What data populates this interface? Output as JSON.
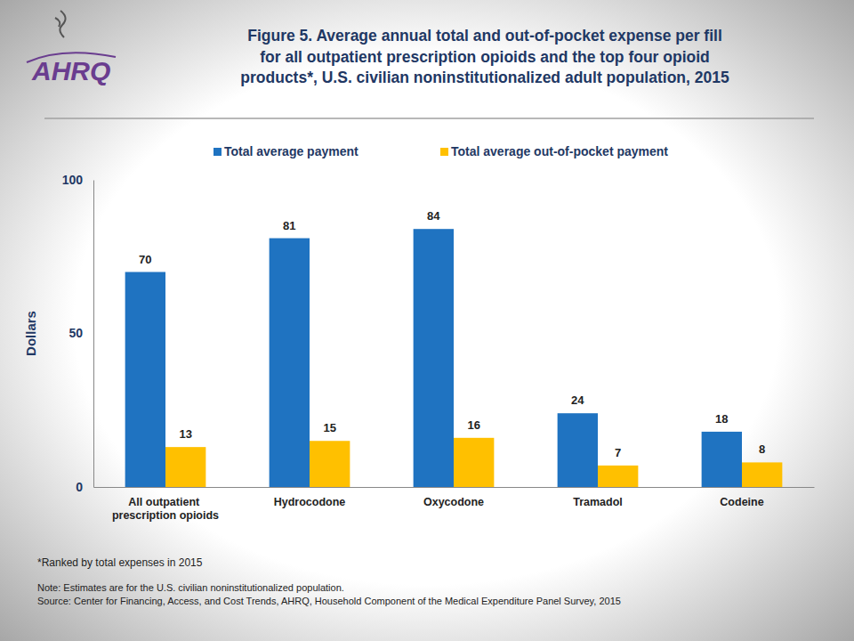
{
  "chart_data": {
    "type": "bar",
    "title": [
      "Figure 5. Average annual total and out-of-pocket expense per fill",
      "for all outpatient prescription opioids and the top four opioid",
      "products*, U.S. civilian noninstitutionalized adult population, 2015"
    ],
    "logo": "AHRQ",
    "categories": [
      "All outpatient prescription opioids",
      "Hydrocodone",
      "Oxycodone",
      "Tramadol",
      "Codeine"
    ],
    "series": [
      {
        "name": "Total average payment",
        "color": "#1f73c1",
        "values": [
          70,
          81,
          84,
          24,
          18
        ]
      },
      {
        "name": "Total average out-of-pocket payment",
        "color": "#ffc000",
        "values": [
          13,
          15,
          16,
          7,
          8
        ]
      }
    ],
    "ylim": [
      0,
      100
    ],
    "yticks": [
      0,
      50,
      100
    ],
    "y_label": "Dollars",
    "grid": false,
    "legend": "top",
    "data_labels": true,
    "footnote": "*Ranked by total expenses in 2015",
    "note": "Note: Estimates are for the U.S. civilian noninstitutionalized population.",
    "source": "Source: Center for Financing, Access, and Cost Trends, AHRQ, Household Component of the Medical Expenditure Panel Survey,  2015"
  }
}
